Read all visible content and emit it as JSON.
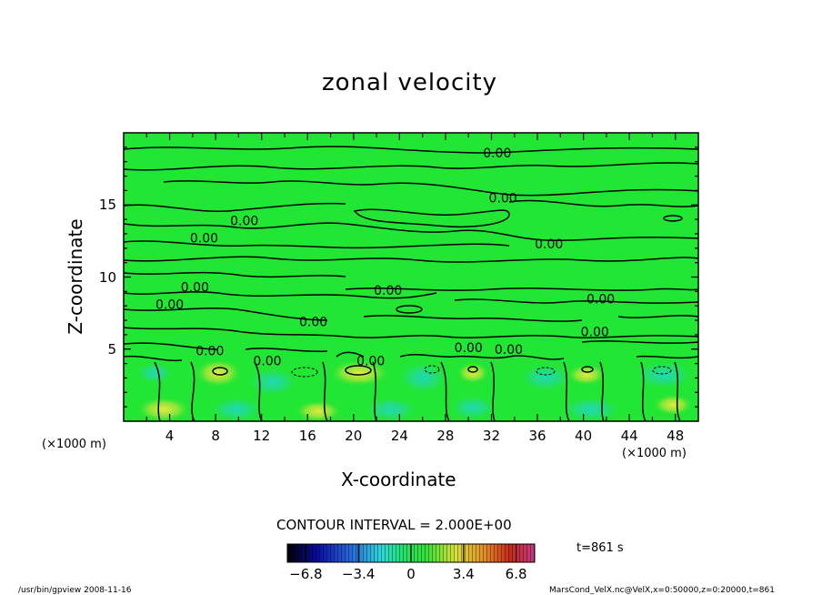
{
  "chart_data": {
    "type": "heatmap",
    "title": "zonal velocity",
    "xlabel": "X-coordinate",
    "ylabel": "Z-coordinate",
    "x_unit": "(×1000 m)",
    "y_unit": "(×1000 m)",
    "xlim": [
      0,
      50
    ],
    "ylim": [
      0,
      20
    ],
    "x_ticks": [
      "4",
      "8",
      "12",
      "16",
      "20",
      "24",
      "28",
      "32",
      "36",
      "40",
      "44",
      "48"
    ],
    "y_ticks": [
      "5",
      "10",
      "15"
    ],
    "contour_label": "0.00",
    "contour_interval_text": "CONTOUR INTERVAL = 2.000E+00",
    "contour_interval": 2.0,
    "colorbar": {
      "ticks": [
        "−6.8",
        "−3.4",
        "0",
        "3.4",
        "6.8"
      ],
      "tick_values": [
        -6.8,
        -3.4,
        0,
        3.4,
        6.8
      ],
      "range": [
        -8.0,
        8.0
      ]
    },
    "time_label": "t=861 s",
    "contour_labels": [
      {
        "x": 32.5,
        "z": 18.6
      },
      {
        "x": 33.0,
        "z": 15.5
      },
      {
        "x": 10.5,
        "z": 13.9
      },
      {
        "x": 7.0,
        "z": 12.7
      },
      {
        "x": 37.0,
        "z": 12.3
      },
      {
        "x": 6.2,
        "z": 9.3
      },
      {
        "x": 23.0,
        "z": 9.1
      },
      {
        "x": 4.0,
        "z": 8.1
      },
      {
        "x": 41.5,
        "z": 8.5
      },
      {
        "x": 16.5,
        "z": 6.9
      },
      {
        "x": 41.0,
        "z": 6.2
      },
      {
        "x": 7.5,
        "z": 4.9
      },
      {
        "x": 12.5,
        "z": 4.2
      },
      {
        "x": 21.5,
        "z": 4.2
      },
      {
        "x": 30.0,
        "z": 5.1
      },
      {
        "x": 33.5,
        "z": 5.0
      }
    ]
  },
  "footer": {
    "left": "/usr/bin/gpview   2008-11-16",
    "right": "MarsCond_VelX.nc@VelX,x=0:50000,z=0:20000,t=861"
  },
  "colors": {
    "background_field": "#22e634",
    "contour_line": "#000000",
    "positive_anomaly": "#d8e83a",
    "negative_anomaly": "#27dca6"
  }
}
